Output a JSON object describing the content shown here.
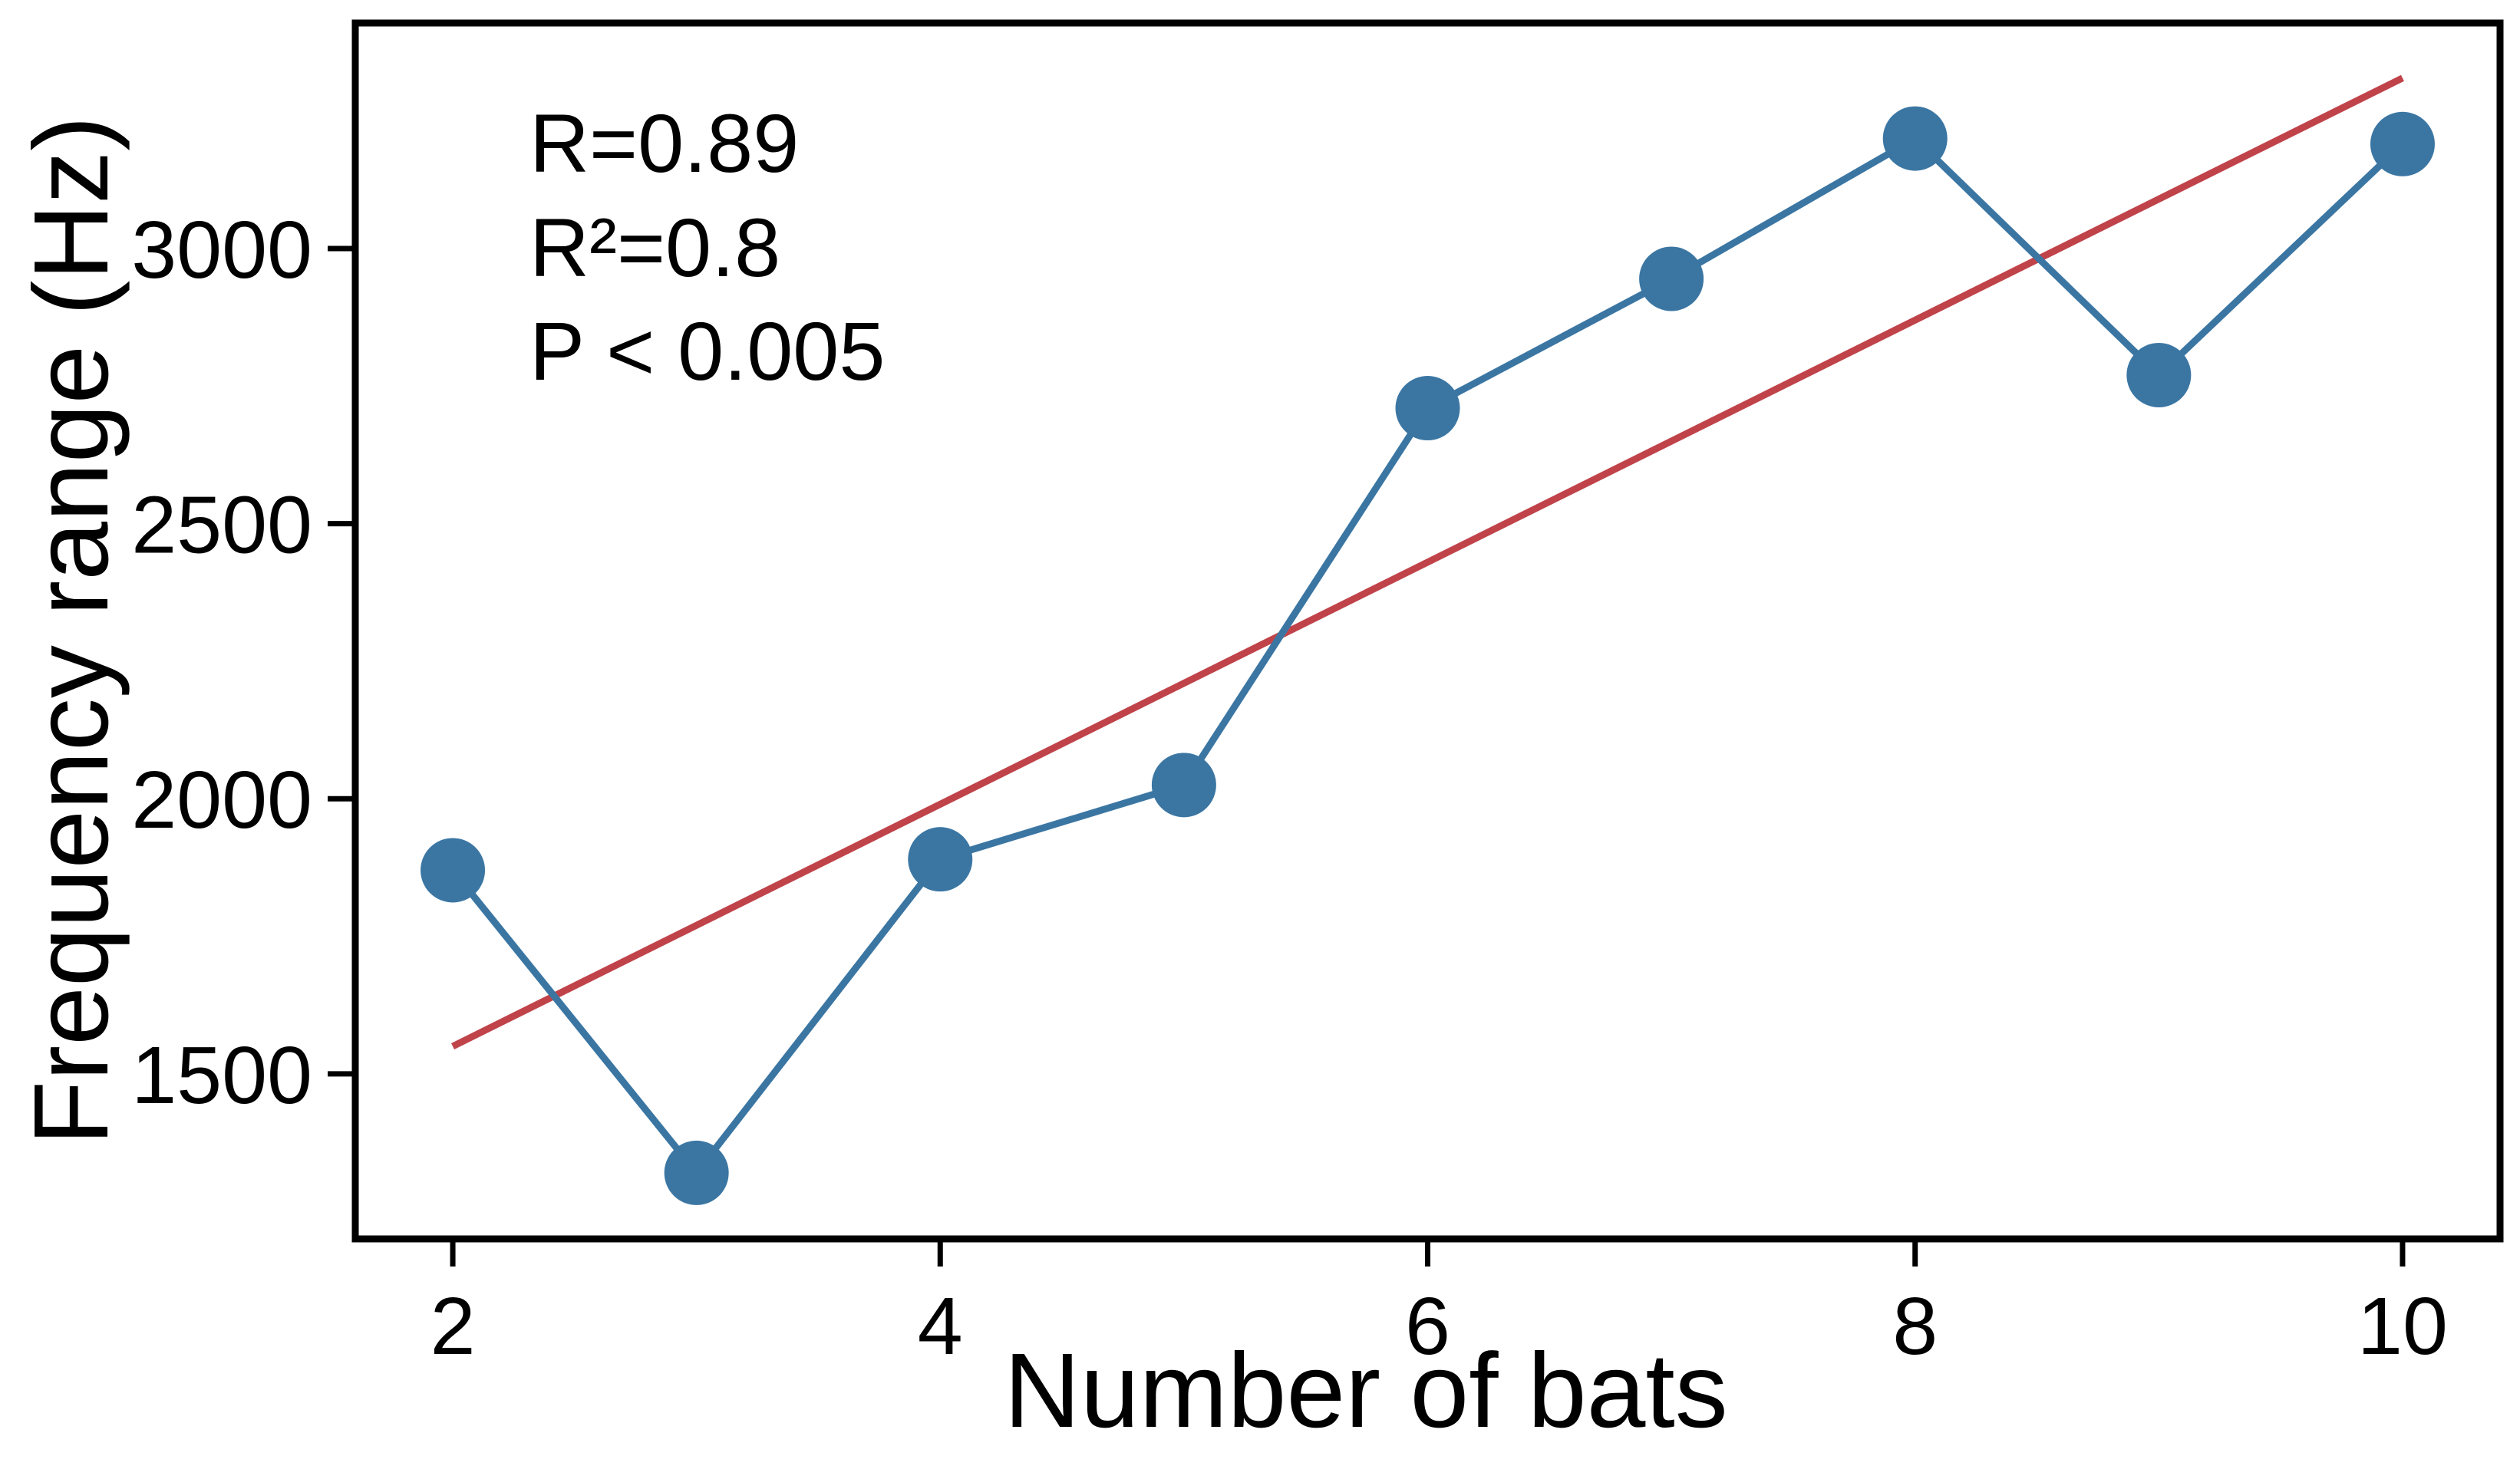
{
  "chart_data": {
    "type": "line",
    "xlabel": "Number of bats",
    "ylabel": "Frequency range (Hz)",
    "x_ticks": [
      2,
      4,
      6,
      8,
      10
    ],
    "y_ticks": [
      1500,
      2000,
      2500,
      3000
    ],
    "xlim": [
      1.6,
      10.4
    ],
    "ylim": [
      1200,
      3410
    ],
    "grid": false,
    "series": [
      {
        "x": [
          2,
          3,
          4,
          5,
          6,
          7,
          8,
          9,
          10
        ],
        "values": [
          1870,
          1320,
          1890,
          2025,
          2710,
          2945,
          3200,
          2770,
          3190
        ],
        "color": "#3b76a3",
        "marker": "circle"
      }
    ],
    "fit_line": {
      "x": [
        2,
        10
      ],
      "values": [
        1550,
        3310
      ],
      "color": "#c0434a"
    },
    "annotations": [
      "R=0.89",
      "R²=0.8",
      "P < 0.005"
    ]
  }
}
